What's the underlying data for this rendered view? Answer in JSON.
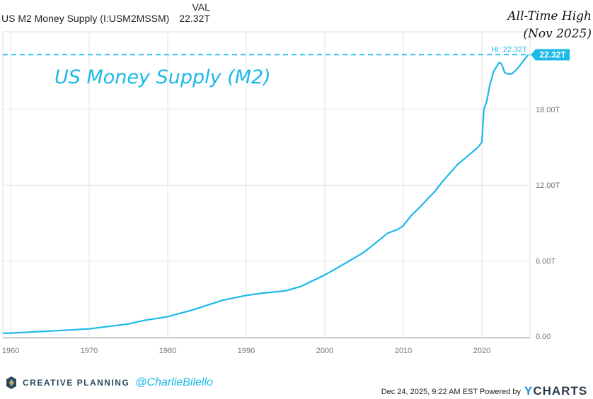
{
  "header": {
    "val_label": "VAL",
    "series_name": "US M2 Money Supply (I:USM2MSSM)",
    "series_value": "22.32T"
  },
  "annotations": {
    "title": "US Money Supply (M2)",
    "ath_line1": "All-Time High",
    "ath_line2": "(Nov 2025)",
    "hi_label": "Hi: 22.32T",
    "last_value": "22.32T"
  },
  "footer": {
    "brand": "CREATIVE PLANNING",
    "handle": "@CharlieBilello",
    "date": "Dec 24, 2025, 9:22 AM EST Powered by",
    "ycharts_y": "Y",
    "ycharts_rest": "CHARTS"
  },
  "colors": {
    "line": "#1bb8ea",
    "grid": "#e3e3e3",
    "axis_text": "#777777"
  },
  "chart_data": {
    "type": "line",
    "title": "US M2 Money Supply (I:USM2MSSM)",
    "xlabel": "",
    "ylabel": "",
    "xlim": [
      1959,
      2025.9
    ],
    "ylim": [
      0,
      24
    ],
    "x_ticks": [
      1960,
      1970,
      1980,
      1990,
      2000,
      2010,
      2020
    ],
    "x_tick_labels": [
      "1960",
      "1970",
      "1980",
      "1990",
      "2000",
      "2010",
      "2020"
    ],
    "y_ticks": [
      0,
      6,
      12,
      18
    ],
    "y_tick_labels": [
      "0.00",
      "6.00T",
      "12.00T",
      "18.00T"
    ],
    "grid": true,
    "y_axis_side": "right",
    "hi_value": 22.32,
    "series": [
      {
        "name": "US M2 Money Supply",
        "unit": "T USD",
        "x": [
          1959,
          1960,
          1965,
          1970,
          1975,
          1977,
          1980,
          1983,
          1985,
          1987,
          1990,
          1992,
          1995,
          1997,
          2000,
          2002,
          2005,
          2008,
          2009.3,
          2010,
          2011,
          2012,
          2014,
          2015,
          2017,
          2018,
          2019.5,
          2020.0,
          2020.25,
          2020.6,
          2021,
          2021.5,
          2022.2,
          2022.5,
          2022.9,
          2023.3,
          2023.8,
          2024.5,
          2025,
          2025.5,
          2025.9
        ],
        "y": [
          0.29,
          0.3,
          0.46,
          0.63,
          1.02,
          1.3,
          1.6,
          2.1,
          2.5,
          2.9,
          3.28,
          3.45,
          3.64,
          4.0,
          4.9,
          5.6,
          6.7,
          8.2,
          8.5,
          8.8,
          9.6,
          10.2,
          11.5,
          12.3,
          13.7,
          14.2,
          15.0,
          15.4,
          18.0,
          18.6,
          19.9,
          21.0,
          21.7,
          21.6,
          20.9,
          20.8,
          20.8,
          21.2,
          21.6,
          22.0,
          22.32
        ]
      }
    ]
  }
}
